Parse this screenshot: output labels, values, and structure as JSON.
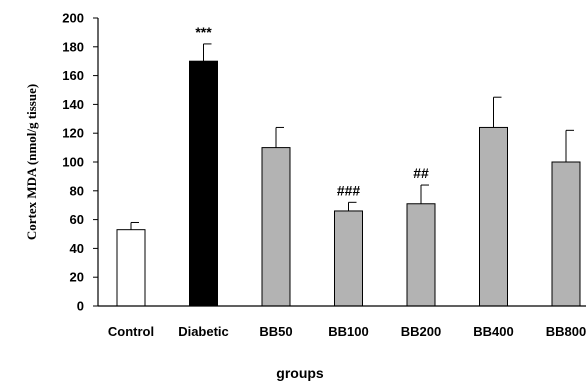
{
  "chart_data": {
    "type": "bar",
    "title": "",
    "xlabel": "groups",
    "ylabel": "Cortex MDA (nmol/g tissue)",
    "ylim": [
      0,
      200
    ],
    "yticks": [
      0,
      20,
      40,
      60,
      80,
      100,
      120,
      140,
      160,
      180,
      200
    ],
    "grid": false,
    "legend": "none",
    "categories": [
      "Control",
      "Diabetic",
      "BB50",
      "BB100",
      "BB200",
      "BB400",
      "BB800"
    ],
    "values": [
      53,
      170,
      110,
      66,
      71,
      124,
      100
    ],
    "errors": [
      5,
      12,
      14,
      6,
      13,
      21,
      22
    ],
    "annotations": [
      "",
      "***",
      "",
      "###",
      "##",
      "",
      ""
    ],
    "bar_colors": [
      "#ffffff",
      "#000000",
      "#b3b3b3",
      "#b3b3b3",
      "#b3b3b3",
      "#b3b3b3",
      "#b3b3b3"
    ],
    "axis_color": "#000000"
  }
}
